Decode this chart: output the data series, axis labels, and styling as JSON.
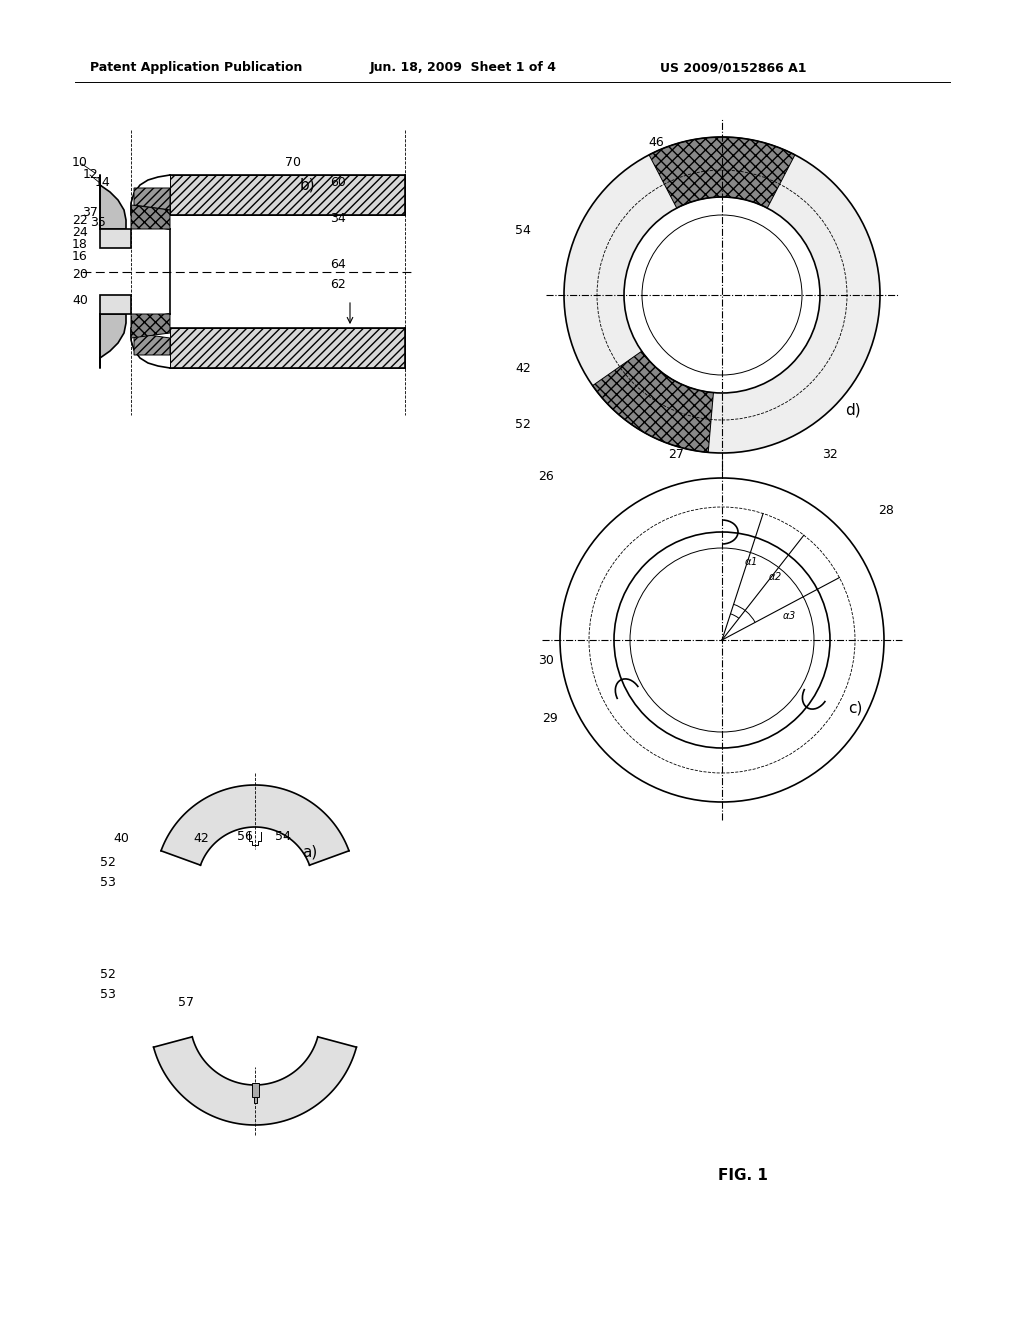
{
  "title_left": "Patent Application Publication",
  "title_mid": "Jun. 18, 2009  Sheet 1 of 4",
  "title_right": "US 2009/0152866 A1",
  "fig_label": "FIG. 1",
  "bg_color": "#ffffff",
  "line_color": "#000000",
  "label_fontsize": 9,
  "header_fontsize": 9
}
